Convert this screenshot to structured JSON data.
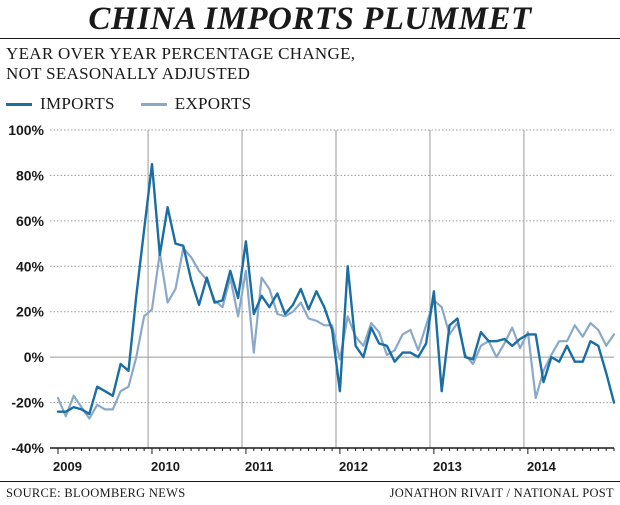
{
  "chart_data": {
    "type": "line",
    "title": "CHINA IMPORTS PLUMMET",
    "subtitle_line1": "YEAR OVER YEAR PERCENTAGE CHANGE,",
    "subtitle_line2": "NOT SEASONALLY ADJUSTED",
    "ylim": [
      -40,
      100
    ],
    "y_ticks": [
      -40,
      -20,
      0,
      20,
      40,
      60,
      80,
      100
    ],
    "y_tick_labels": [
      "-40%",
      "-20%",
      "0%",
      "20%",
      "40%",
      "60%",
      "80%",
      "100%"
    ],
    "x_range": [
      "2009-01",
      "2014-12"
    ],
    "x_tick_labels": [
      "2009",
      "2010",
      "2011",
      "2012",
      "2013",
      "2014"
    ],
    "legend_placement": "top-left",
    "vertical_year_gridlines": true,
    "x": [
      "2009-01",
      "2009-02",
      "2009-03",
      "2009-04",
      "2009-05",
      "2009-06",
      "2009-07",
      "2009-08",
      "2009-09",
      "2009-10",
      "2009-11",
      "2009-12",
      "2010-01",
      "2010-02",
      "2010-03",
      "2010-04",
      "2010-05",
      "2010-06",
      "2010-07",
      "2010-08",
      "2010-09",
      "2010-10",
      "2010-11",
      "2010-12",
      "2011-01",
      "2011-02",
      "2011-03",
      "2011-04",
      "2011-05",
      "2011-06",
      "2011-07",
      "2011-08",
      "2011-09",
      "2011-10",
      "2011-11",
      "2011-12",
      "2012-01",
      "2012-02",
      "2012-03",
      "2012-04",
      "2012-05",
      "2012-06",
      "2012-07",
      "2012-08",
      "2012-09",
      "2012-10",
      "2012-11",
      "2012-12",
      "2013-01",
      "2013-02",
      "2013-03",
      "2013-04",
      "2013-05",
      "2013-06",
      "2013-07",
      "2013-08",
      "2013-09",
      "2013-10",
      "2013-11",
      "2013-12",
      "2014-01",
      "2014-02",
      "2014-03",
      "2014-04",
      "2014-05",
      "2014-06",
      "2014-07",
      "2014-08",
      "2014-09",
      "2014-10",
      "2014-11",
      "2014-12"
    ],
    "series": [
      {
        "name": "IMPORTS",
        "color": "#1a6ea2",
        "values": [
          -24,
          -24,
          -22,
          -23,
          -25,
          -13,
          -15,
          -17,
          -3,
          -6,
          27,
          56,
          85,
          45,
          66,
          50,
          49,
          34,
          23,
          35,
          24,
          25,
          38,
          26,
          51,
          19,
          27,
          22,
          28,
          19,
          23,
          30,
          21,
          29,
          22,
          12,
          -15,
          40,
          5,
          0,
          13,
          6,
          5,
          -2,
          2,
          2,
          0,
          6,
          29,
          -15,
          14,
          17,
          0,
          -1,
          11,
          7,
          7,
          8,
          5,
          8,
          10,
          10,
          -11,
          0,
          -2,
          5,
          -2,
          -2,
          7,
          5,
          -7,
          -20
        ]
      },
      {
        "name": "EXPORTS",
        "color": "#8aa9c9",
        "values": [
          -18,
          -26,
          -17,
          -22,
          -27,
          -21,
          -23,
          -23,
          -15,
          -13,
          0,
          18,
          21,
          46,
          24,
          30,
          48,
          44,
          38,
          34,
          25,
          22,
          35,
          18,
          38,
          2,
          35,
          30,
          19,
          18,
          20,
          24,
          17,
          16,
          14,
          14,
          -1,
          18,
          9,
          5,
          15,
          11,
          1,
          3,
          10,
          12,
          3,
          14,
          25,
          22,
          10,
          15,
          1,
          -3,
          5,
          7,
          0,
          6,
          13,
          4,
          11,
          -18,
          -6,
          1,
          7,
          7,
          14,
          9,
          15,
          12,
          5,
          10
        ]
      }
    ]
  },
  "footer": {
    "source": "SOURCE: BLOOMBERG NEWS",
    "credit": "JONATHON RIVAIT / NATIONAL POST"
  }
}
